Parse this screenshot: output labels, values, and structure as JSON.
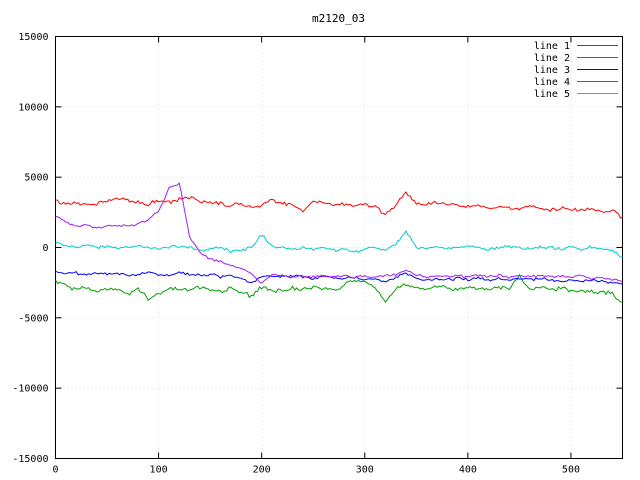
{
  "window": {
    "background": "#ffffff"
  },
  "chart_data": {
    "type": "line",
    "title": "m2120_03",
    "xlabel": "",
    "ylabel": "",
    "xlim": [
      0,
      550
    ],
    "ylim": [
      -15000,
      15000
    ],
    "x_ticks": [
      0,
      100,
      200,
      300,
      400,
      500
    ],
    "y_ticks": [
      -15000,
      -10000,
      -5000,
      0,
      5000,
      10000,
      15000
    ],
    "grid": true,
    "grid_color": "#d8d8d8",
    "axis_color": "#000000",
    "legend_position": "top-right",
    "x_start": 0,
    "x_step": 10,
    "x_sample_step": 2,
    "series": [
      {
        "name": "line 1",
        "color": "#ff0000",
        "noise": 160,
        "y": [
          3300,
          3100,
          3200,
          3000,
          3150,
          3300,
          3500,
          3400,
          3200,
          3100,
          3300,
          3200,
          3400,
          3600,
          3300,
          3200,
          3100,
          3000,
          3100,
          2900,
          3000,
          3400,
          3200,
          3000,
          2600,
          3300,
          3200,
          3000,
          3100,
          3000,
          3100,
          2900,
          2300,
          3000,
          4000,
          3100,
          3000,
          3200,
          3100,
          3000,
          2900,
          3000,
          2800,
          2900,
          2800,
          2700,
          2900,
          2800,
          2700,
          2800,
          2700,
          2600,
          2700,
          2500,
          2600,
          2100
        ]
      },
      {
        "name": "line 2",
        "color": "#00a000",
        "noise": 180,
        "y": [
          -2400,
          -2700,
          -3000,
          -2800,
          -3100,
          -2900,
          -3000,
          -3300,
          -2900,
          -3600,
          -3200,
          -3000,
          -2900,
          -3100,
          -2800,
          -3000,
          -3100,
          -2900,
          -3200,
          -3500,
          -2800,
          -3000,
          -3100,
          -2900,
          -3000,
          -2800,
          -2900,
          -3000,
          -2700,
          -2200,
          -2500,
          -2800,
          -3900,
          -3000,
          -2600,
          -2900,
          -3000,
          -2800,
          -2900,
          -3000,
          -2800,
          -2900,
          -3000,
          -2800,
          -2900,
          -2000,
          -2900,
          -2800,
          -3000,
          -2900,
          -3100,
          -3000,
          -3200,
          -3100,
          -3300,
          -4000
        ]
      },
      {
        "name": "line 3",
        "color": "#0000ff",
        "noise": 110,
        "y": [
          -1700,
          -1900,
          -1800,
          -2000,
          -1800,
          -1900,
          -1800,
          -2000,
          -1900,
          -1800,
          -1900,
          -2000,
          -1800,
          -1900,
          -2000,
          -1900,
          -2100,
          -2000,
          -2200,
          -2500,
          -2100,
          -2000,
          -2100,
          -2000,
          -2100,
          -2200,
          -2000,
          -2100,
          -2200,
          -2100,
          -2300,
          -2200,
          -2400,
          -2100,
          -1800,
          -2200,
          -2300,
          -2200,
          -2300,
          -2200,
          -2300,
          -2200,
          -2300,
          -2200,
          -2300,
          -2200,
          -2300,
          -2200,
          -2300,
          -2400,
          -2300,
          -2400,
          -2300,
          -2400,
          -2500,
          -2600
        ]
      },
      {
        "name": "line 4",
        "color": "#a020f0",
        "noise": 110,
        "y": [
          2200,
          1800,
          1500,
          1600,
          1400,
          1500,
          1600,
          1500,
          1700,
          2000,
          2600,
          4200,
          4600,
          800,
          -400,
          -800,
          -1000,
          -1300,
          -1500,
          -1800,
          -2600,
          -1900,
          -2000,
          -2100,
          -2000,
          -2100,
          -2000,
          -2100,
          -2000,
          -2100,
          -2000,
          -2100,
          -2000,
          -1900,
          -1600,
          -2000,
          -2100,
          -2000,
          -2100,
          -2000,
          -2100,
          -2000,
          -2100,
          -2000,
          -2100,
          -2000,
          -2100,
          -2000,
          -2100,
          -2000,
          -2100,
          -2000,
          -2200,
          -2100,
          -2300,
          -2400
        ]
      },
      {
        "name": "line 5",
        "color": "#00cccc",
        "noise": 130,
        "y": [
          300,
          100,
          0,
          200,
          0,
          100,
          -100,
          0,
          100,
          0,
          -100,
          0,
          100,
          0,
          -200,
          -100,
          0,
          -300,
          -200,
          0,
          900,
          100,
          0,
          -100,
          0,
          -100,
          0,
          -200,
          -100,
          -300,
          -100,
          0,
          -200,
          300,
          1100,
          0,
          -100,
          0,
          -100,
          0,
          100,
          0,
          -100,
          0,
          100,
          0,
          -100,
          100,
          0,
          -100,
          0,
          -100,
          0,
          -100,
          -200,
          -700
        ]
      }
    ]
  }
}
